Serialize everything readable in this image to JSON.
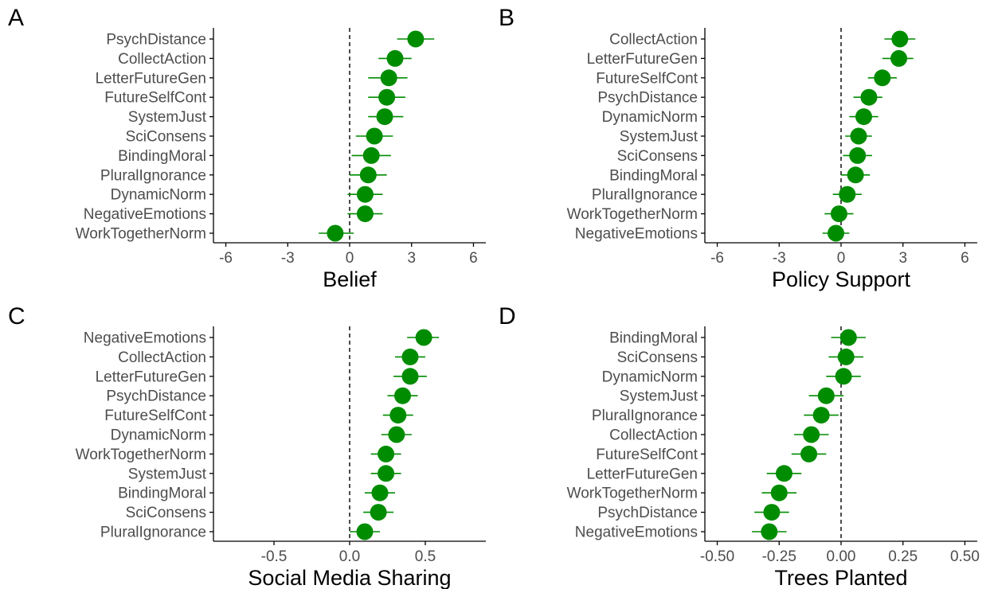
{
  "colors": {
    "point": "#008c00",
    "axis": "#000000",
    "zero_line": "#000000",
    "tick_label": "#4d4d4d"
  },
  "chart_data": [
    {
      "panel": "A",
      "type": "scatter",
      "subtype": "coefficient dot plot with horizontal error bars",
      "xlabel": "Belief",
      "xlim": [
        -6.6,
        6.6
      ],
      "xticks": [
        -6,
        -3,
        0,
        3,
        6
      ],
      "xtick_labels": [
        "-6",
        "-3",
        "0",
        "3",
        "6"
      ],
      "reference_line": 0,
      "grid": false,
      "points": [
        {
          "label": "PsychDistance",
          "estimate": 3.2,
          "low": 2.3,
          "high": 4.1
        },
        {
          "label": "CollectAction",
          "estimate": 2.2,
          "low": 1.4,
          "high": 3.0
        },
        {
          "label": "LetterFutureGen",
          "estimate": 1.9,
          "low": 0.9,
          "high": 2.8
        },
        {
          "label": "FutureSelfCont",
          "estimate": 1.8,
          "low": 0.9,
          "high": 2.7
        },
        {
          "label": "SystemJust",
          "estimate": 1.7,
          "low": 0.9,
          "high": 2.6
        },
        {
          "label": "SciConsens",
          "estimate": 1.2,
          "low": 0.3,
          "high": 2.1
        },
        {
          "label": "BindingMoral",
          "estimate": 1.05,
          "low": 0.1,
          "high": 2.0
        },
        {
          "label": "PluralIgnorance",
          "estimate": 0.9,
          "low": 0.0,
          "high": 1.8
        },
        {
          "label": "DynamicNorm",
          "estimate": 0.75,
          "low": -0.1,
          "high": 1.6
        },
        {
          "label": "NegativeEmotions",
          "estimate": 0.75,
          "low": -0.1,
          "high": 1.6
        },
        {
          "label": "WorkTogetherNorm",
          "estimate": -0.7,
          "low": -1.5,
          "high": 0.2
        }
      ]
    },
    {
      "panel": "B",
      "type": "scatter",
      "subtype": "coefficient dot plot with horizontal error bars",
      "xlabel": "Policy Support",
      "xlim": [
        -6.6,
        6.6
      ],
      "xticks": [
        -6,
        -3,
        0,
        3,
        6
      ],
      "xtick_labels": [
        "-6",
        "-3",
        "0",
        "3",
        "6"
      ],
      "reference_line": 0,
      "grid": false,
      "points": [
        {
          "label": "CollectAction",
          "estimate": 2.85,
          "low": 2.1,
          "high": 3.6
        },
        {
          "label": "LetterFutureGen",
          "estimate": 2.8,
          "low": 2.0,
          "high": 3.5
        },
        {
          "label": "FutureSelfCont",
          "estimate": 2.0,
          "low": 1.3,
          "high": 2.7
        },
        {
          "label": "PsychDistance",
          "estimate": 1.35,
          "low": 0.6,
          "high": 2.0
        },
        {
          "label": "DynamicNorm",
          "estimate": 1.1,
          "low": 0.4,
          "high": 1.8
        },
        {
          "label": "SystemJust",
          "estimate": 0.85,
          "low": 0.2,
          "high": 1.5
        },
        {
          "label": "SciConsens",
          "estimate": 0.8,
          "low": 0.1,
          "high": 1.5
        },
        {
          "label": "BindingMoral",
          "estimate": 0.7,
          "low": 0.0,
          "high": 1.4
        },
        {
          "label": "PluralIgnorance",
          "estimate": 0.3,
          "low": -0.4,
          "high": 1.0
        },
        {
          "label": "WorkTogetherNorm",
          "estimate": -0.1,
          "low": -0.8,
          "high": 0.6
        },
        {
          "label": "NegativeEmotions",
          "estimate": -0.25,
          "low": -0.9,
          "high": 0.4
        }
      ]
    },
    {
      "panel": "C",
      "type": "scatter",
      "subtype": "coefficient dot plot with horizontal error bars",
      "xlabel": "Social Media Sharing",
      "xlim": [
        -0.9,
        0.9
      ],
      "xticks": [
        -0.5,
        0.0,
        0.5
      ],
      "xtick_labels": [
        "-0.5",
        "0.0",
        "0.5"
      ],
      "reference_line": 0,
      "grid": false,
      "points": [
        {
          "label": "NegativeEmotions",
          "estimate": 0.49,
          "low": 0.38,
          "high": 0.59
        },
        {
          "label": "CollectAction",
          "estimate": 0.4,
          "low": 0.3,
          "high": 0.5
        },
        {
          "label": "LetterFutureGen",
          "estimate": 0.4,
          "low": 0.29,
          "high": 0.51
        },
        {
          "label": "PsychDistance",
          "estimate": 0.35,
          "low": 0.25,
          "high": 0.45
        },
        {
          "label": "FutureSelfCont",
          "estimate": 0.32,
          "low": 0.22,
          "high": 0.42
        },
        {
          "label": "DynamicNorm",
          "estimate": 0.31,
          "low": 0.21,
          "high": 0.41
        },
        {
          "label": "WorkTogetherNorm",
          "estimate": 0.24,
          "low": 0.14,
          "high": 0.34
        },
        {
          "label": "SystemJust",
          "estimate": 0.24,
          "low": 0.14,
          "high": 0.34
        },
        {
          "label": "BindingMoral",
          "estimate": 0.2,
          "low": 0.1,
          "high": 0.3
        },
        {
          "label": "SciConsens",
          "estimate": 0.19,
          "low": 0.09,
          "high": 0.29
        },
        {
          "label": "PluralIgnorance",
          "estimate": 0.1,
          "low": 0.0,
          "high": 0.2
        }
      ]
    },
    {
      "panel": "D",
      "type": "scatter",
      "subtype": "coefficient dot plot with horizontal error bars",
      "xlabel": "Trees Planted",
      "xlim": [
        -0.55,
        0.55
      ],
      "xticks": [
        -0.5,
        -0.25,
        0.0,
        0.25,
        0.5
      ],
      "xtick_labels": [
        "-0.50",
        "-0.25",
        "0.00",
        "0.25",
        "0.50"
      ],
      "reference_line": 0,
      "grid": false,
      "points": [
        {
          "label": "BindingMoral",
          "estimate": 0.03,
          "low": -0.04,
          "high": 0.1
        },
        {
          "label": "SciConsens",
          "estimate": 0.02,
          "low": -0.05,
          "high": 0.09
        },
        {
          "label": "DynamicNorm",
          "estimate": 0.01,
          "low": -0.06,
          "high": 0.08
        },
        {
          "label": "SystemJust",
          "estimate": -0.06,
          "low": -0.13,
          "high": 0.01
        },
        {
          "label": "PluralIgnorance",
          "estimate": -0.08,
          "low": -0.15,
          "high": -0.01
        },
        {
          "label": "CollectAction",
          "estimate": -0.12,
          "low": -0.19,
          "high": -0.05
        },
        {
          "label": "FutureSelfCont",
          "estimate": -0.13,
          "low": -0.2,
          "high": -0.06
        },
        {
          "label": "LetterFutureGen",
          "estimate": -0.23,
          "low": -0.3,
          "high": -0.16
        },
        {
          "label": "WorkTogetherNorm",
          "estimate": -0.25,
          "low": -0.32,
          "high": -0.18
        },
        {
          "label": "PsychDistance",
          "estimate": -0.28,
          "low": -0.35,
          "high": -0.21
        },
        {
          "label": "NegativeEmotions",
          "estimate": -0.29,
          "low": -0.36,
          "high": -0.22
        }
      ]
    }
  ]
}
